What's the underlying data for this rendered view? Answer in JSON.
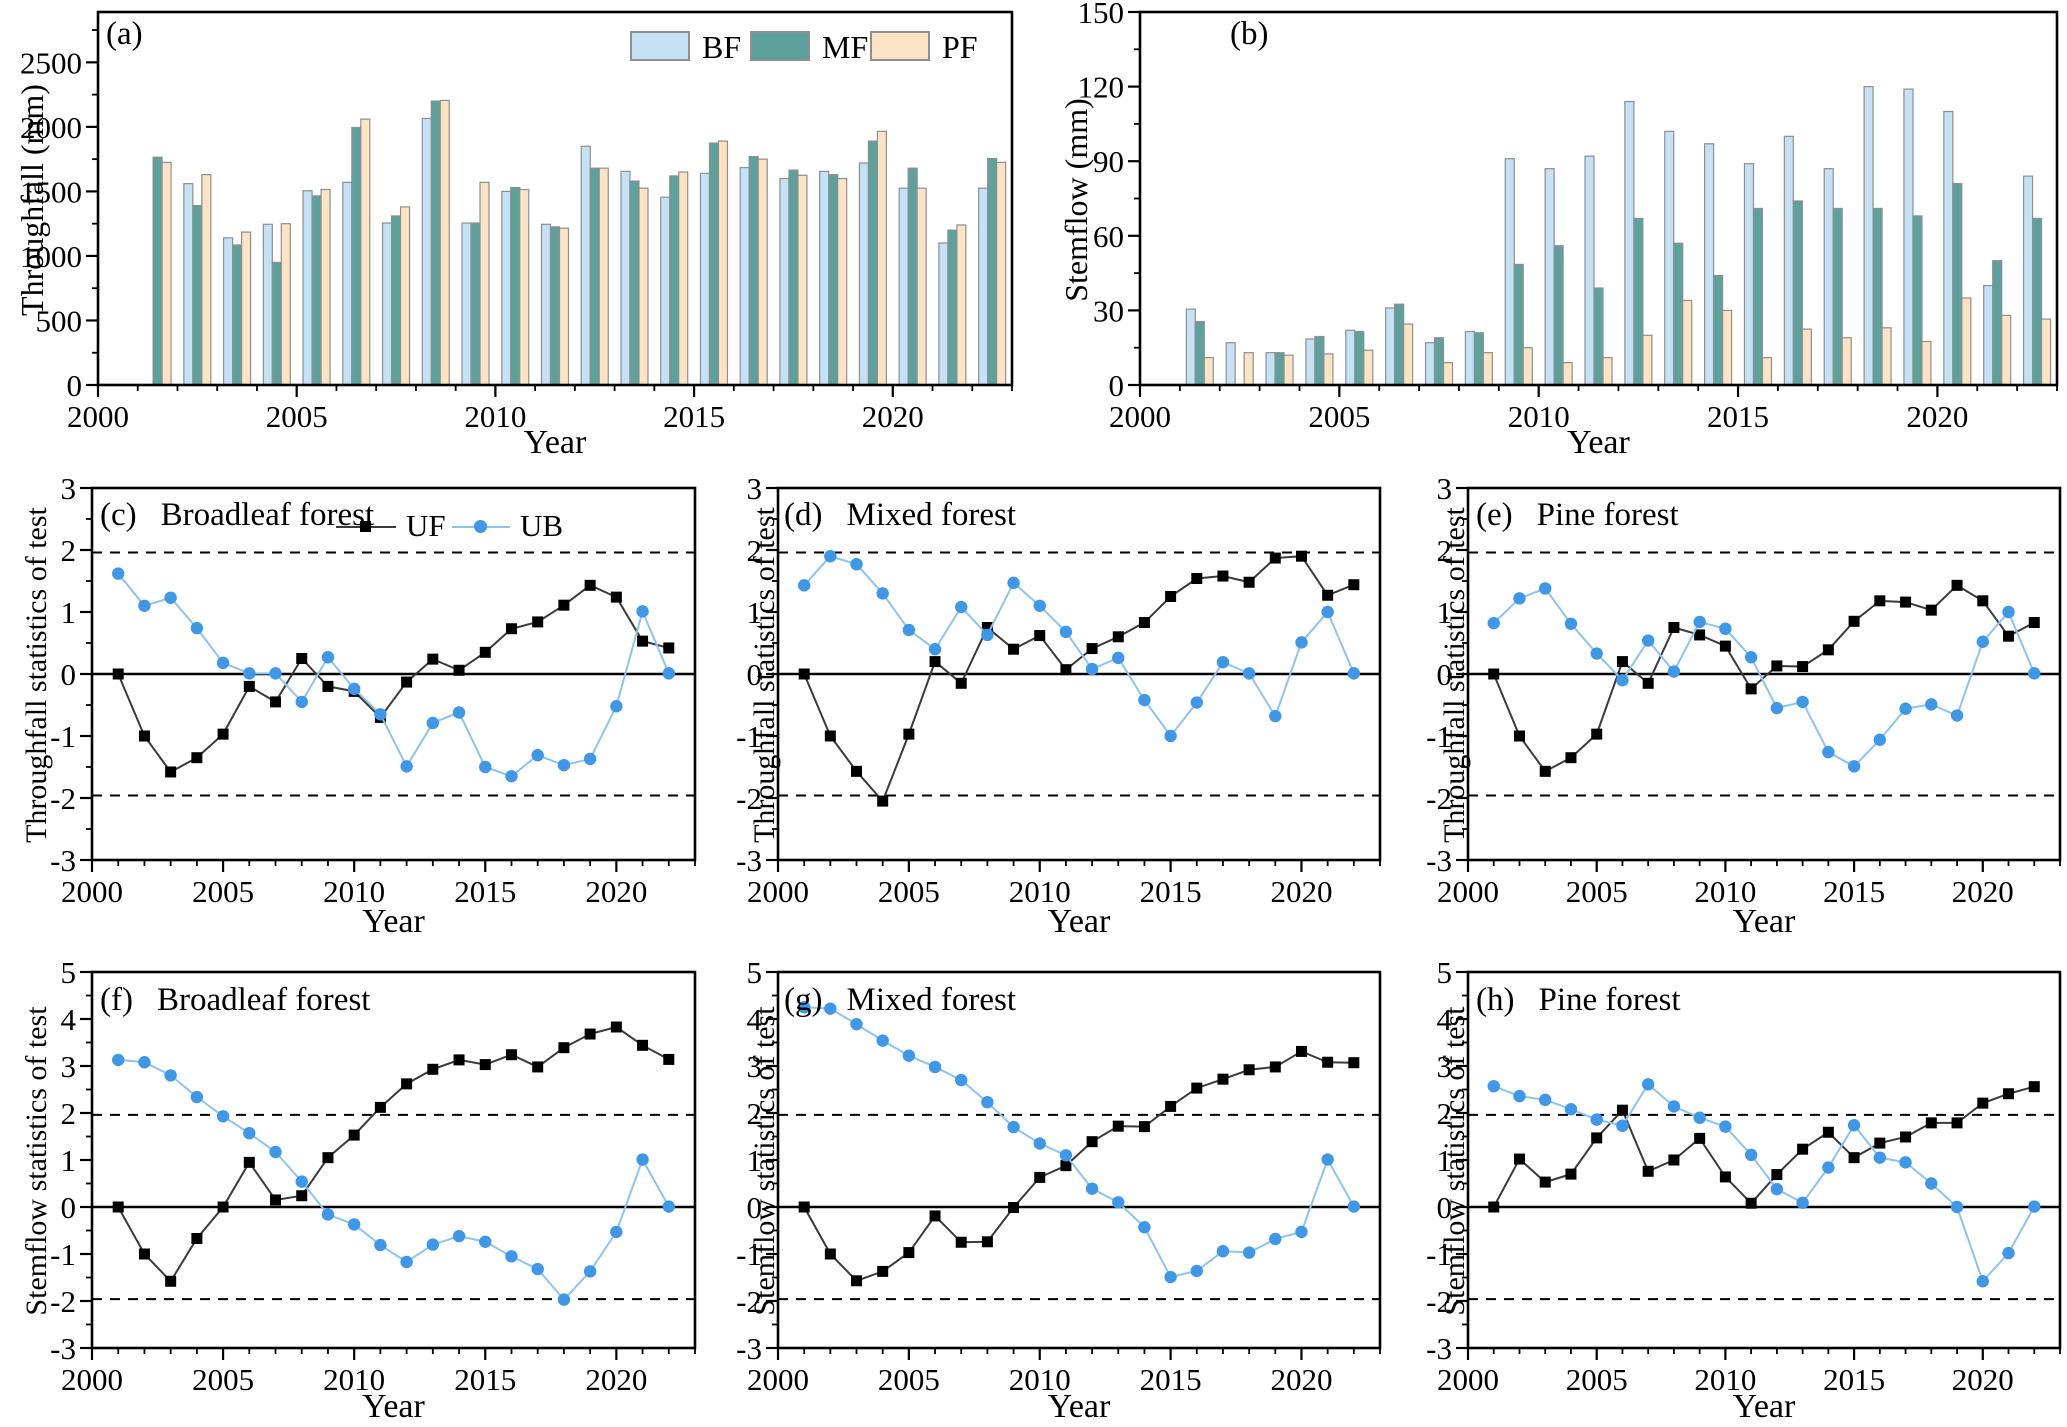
{
  "colors": {
    "bf": "#c5e1f5",
    "mf": "#5da19d",
    "pf": "#fbe3c3",
    "bar_border": "#8f8f8f",
    "uf_line": "#3a3a3a",
    "uf_marker": "#000000",
    "ub_line": "#8cc3f0",
    "ub_marker": "#3f97e8",
    "axis": "#000000"
  },
  "chart_data": [
    {
      "id": "a",
      "type": "bar",
      "label": "(a)",
      "title": "",
      "xlabel": "Year",
      "ylabel": "Throughfall (mm)",
      "legend": [
        "BF",
        "MF",
        "PF"
      ],
      "legend_position": "top-right",
      "xlim": [
        2000,
        2023
      ],
      "xticks": [
        2000,
        2005,
        2010,
        2015,
        2020
      ],
      "ylim": [
        0,
        2890
      ],
      "yticks": [
        0,
        500,
        1000,
        1500,
        2000,
        2500
      ],
      "yminor": 250,
      "x": [
        2001,
        2002,
        2003,
        2004,
        2005,
        2006,
        2007,
        2008,
        2009,
        2010,
        2011,
        2012,
        2013,
        2014,
        2015,
        2016,
        2017,
        2018,
        2019,
        2020,
        2021,
        2022
      ],
      "series": [
        {
          "name": "BF",
          "values": [
            null,
            1560,
            1140,
            1245,
            1505,
            1570,
            1255,
            2065,
            1255,
            1500,
            1245,
            1850,
            1655,
            1455,
            1640,
            1685,
            1600,
            1655,
            1720,
            1525,
            1100,
            1525
          ]
        },
        {
          "name": "MF",
          "values": [
            1765,
            1390,
            1085,
            950,
            1465,
            1995,
            1310,
            2200,
            1255,
            1530,
            1225,
            1680,
            1580,
            1620,
            1875,
            1770,
            1665,
            1630,
            1890,
            1680,
            1200,
            1755
          ]
        },
        {
          "name": "PF",
          "values": [
            1725,
            1630,
            1185,
            1250,
            1515,
            2060,
            1380,
            2205,
            1570,
            1515,
            1215,
            1680,
            1525,
            1650,
            1890,
            1750,
            1625,
            1600,
            1965,
            1525,
            1240,
            1725
          ]
        }
      ]
    },
    {
      "id": "b",
      "type": "bar",
      "label": "(b)",
      "title": "",
      "xlabel": "Year",
      "ylabel": "Stemflow (mm)",
      "legend": [],
      "legend_position": "none",
      "xlim": [
        2000,
        2023
      ],
      "xticks": [
        2000,
        2005,
        2010,
        2015,
        2020
      ],
      "ylim": [
        0,
        150
      ],
      "yticks": [
        0,
        30,
        60,
        90,
        120,
        150
      ],
      "yminor": 15,
      "x": [
        2001,
        2002,
        2003,
        2004,
        2005,
        2006,
        2007,
        2008,
        2009,
        2010,
        2011,
        2012,
        2013,
        2014,
        2015,
        2016,
        2017,
        2018,
        2019,
        2020,
        2021,
        2022
      ],
      "series": [
        {
          "name": "BF",
          "values": [
            30.5,
            17,
            13,
            18.5,
            22,
            31,
            17,
            21.5,
            91,
            87,
            92,
            114,
            102,
            97,
            89,
            100,
            87,
            120,
            119,
            110,
            40,
            84
          ]
        },
        {
          "name": "MF",
          "values": [
            25.5,
            null,
            13,
            19.5,
            21.5,
            32.5,
            19,
            21,
            48.5,
            56,
            39,
            67,
            57,
            44,
            71,
            74,
            71,
            71,
            68,
            81,
            50,
            67
          ]
        },
        {
          "name": "PF",
          "values": [
            11,
            13,
            12,
            12.5,
            14,
            24.5,
            9,
            13,
            15,
            9,
            11,
            20,
            34,
            30,
            11,
            22.5,
            19,
            23,
            17.5,
            35,
            28,
            26.5
          ]
        }
      ]
    },
    {
      "id": "c",
      "type": "line",
      "label": "(c)",
      "title": "Broadleaf forest",
      "xlabel": "Year",
      "ylabel": "Throughfall statistics of test",
      "legend": [
        "UF",
        "UB"
      ],
      "legend_position": "top-right",
      "xlim": [
        2000,
        2023
      ],
      "xticks": [
        2000,
        2005,
        2010,
        2015,
        2020
      ],
      "ylim": [
        -3,
        3
      ],
      "yticks": [
        -3,
        -2,
        -1,
        0,
        1,
        2,
        3
      ],
      "yminor": 0.5,
      "sig_level": 1.96,
      "zero_line": true,
      "x": [
        2001,
        2002,
        2003,
        2004,
        2005,
        2006,
        2007,
        2008,
        2009,
        2010,
        2011,
        2012,
        2013,
        2014,
        2015,
        2016,
        2017,
        2018,
        2019,
        2020,
        2021,
        2022
      ],
      "series": [
        {
          "name": "UF",
          "values": [
            0,
            -1.0,
            -1.58,
            -1.35,
            -0.97,
            -0.2,
            -0.45,
            0.25,
            -0.2,
            -0.28,
            -0.7,
            -0.13,
            0.24,
            0.06,
            0.35,
            0.73,
            0.84,
            1.11,
            1.43,
            1.24,
            0.53,
            0.42
          ]
        },
        {
          "name": "UB",
          "values": [
            1.62,
            1.1,
            1.23,
            0.74,
            0.18,
            0.01,
            0.01,
            -0.45,
            0.27,
            -0.24,
            -0.65,
            -1.49,
            -0.79,
            -0.62,
            -1.5,
            -1.65,
            -1.31,
            -1.47,
            -1.37,
            -0.52,
            1.01,
            0.01
          ]
        }
      ]
    },
    {
      "id": "d",
      "type": "line",
      "label": "(d)",
      "title": "Mixed forest",
      "xlabel": "Year",
      "ylabel": "Throughfall statistics of test",
      "legend": [],
      "legend_position": "none",
      "xlim": [
        2000,
        2023
      ],
      "xticks": [
        2000,
        2005,
        2010,
        2015,
        2020
      ],
      "ylim": [
        -3,
        3
      ],
      "yticks": [
        -3,
        -2,
        -1,
        0,
        1,
        2,
        3
      ],
      "yminor": 0.5,
      "sig_level": 1.96,
      "zero_line": true,
      "x": [
        2001,
        2002,
        2003,
        2004,
        2005,
        2006,
        2007,
        2008,
        2009,
        2010,
        2011,
        2012,
        2013,
        2014,
        2015,
        2016,
        2017,
        2018,
        2019,
        2020,
        2021,
        2022
      ],
      "series": [
        {
          "name": "UF",
          "values": [
            0,
            -1.0,
            -1.57,
            -2.05,
            -0.97,
            0.2,
            -0.15,
            0.75,
            0.4,
            0.62,
            0.07,
            0.41,
            0.6,
            0.83,
            1.25,
            1.54,
            1.58,
            1.48,
            1.87,
            1.9,
            1.27,
            1.44
          ]
        },
        {
          "name": "UB",
          "values": [
            1.43,
            1.9,
            1.77,
            1.3,
            0.71,
            0.4,
            1.08,
            0.63,
            1.47,
            1.1,
            0.68,
            0.08,
            0.26,
            -0.42,
            -1.0,
            -0.46,
            0.19,
            0.01,
            -0.68,
            0.51,
            1.0,
            0.01
          ]
        }
      ]
    },
    {
      "id": "e",
      "type": "line",
      "label": "(e)",
      "title": "Pine forest",
      "xlabel": "Year",
      "ylabel": "Throughfall statistics of test",
      "legend": [],
      "legend_position": "none",
      "xlim": [
        2000,
        2023
      ],
      "xticks": [
        2000,
        2005,
        2010,
        2015,
        2020
      ],
      "ylim": [
        -3,
        3
      ],
      "yticks": [
        -3,
        -2,
        -1,
        0,
        1,
        2,
        3
      ],
      "yminor": 0.5,
      "sig_level": 1.96,
      "zero_line": true,
      "x": [
        2001,
        2002,
        2003,
        2004,
        2005,
        2006,
        2007,
        2008,
        2009,
        2010,
        2011,
        2012,
        2013,
        2014,
        2015,
        2016,
        2017,
        2018,
        2019,
        2020,
        2021,
        2022
      ],
      "series": [
        {
          "name": "UF",
          "values": [
            0,
            -1.0,
            -1.57,
            -1.35,
            -0.97,
            0.2,
            -0.15,
            0.75,
            0.63,
            0.45,
            -0.24,
            0.13,
            0.12,
            0.39,
            0.85,
            1.18,
            1.16,
            1.03,
            1.43,
            1.18,
            0.61,
            0.83
          ]
        },
        {
          "name": "UB",
          "values": [
            0.82,
            1.22,
            1.38,
            0.81,
            0.33,
            -0.1,
            0.54,
            0.04,
            0.84,
            0.73,
            0.27,
            -0.55,
            -0.45,
            -1.26,
            -1.49,
            -1.06,
            -0.56,
            -0.49,
            -0.67,
            0.52,
            1.0,
            0.01
          ]
        }
      ]
    },
    {
      "id": "f",
      "type": "line",
      "label": "(f)",
      "title": "Broadleaf forest",
      "xlabel": "Year",
      "ylabel": "Stemflow statistics of test",
      "legend": [],
      "legend_position": "none",
      "xlim": [
        2000,
        2023
      ],
      "xticks": [
        2000,
        2005,
        2010,
        2015,
        2020
      ],
      "ylim": [
        -3,
        5
      ],
      "yticks": [
        -3,
        -2,
        -1,
        0,
        1,
        2,
        3,
        4,
        5
      ],
      "yminor": 0.5,
      "sig_level": 1.96,
      "zero_line": true,
      "x": [
        2001,
        2002,
        2003,
        2004,
        2005,
        2006,
        2007,
        2008,
        2009,
        2010,
        2011,
        2012,
        2013,
        2014,
        2015,
        2016,
        2017,
        2018,
        2019,
        2020,
        2021,
        2022
      ],
      "series": [
        {
          "name": "UF",
          "values": [
            0,
            -1.0,
            -1.58,
            -0.67,
            0.0,
            0.95,
            0.15,
            0.24,
            1.05,
            1.53,
            2.12,
            2.62,
            2.93,
            3.13,
            3.03,
            3.24,
            2.98,
            3.39,
            3.68,
            3.83,
            3.44,
            3.14
          ]
        },
        {
          "name": "UB",
          "values": [
            3.13,
            3.08,
            2.8,
            2.34,
            1.93,
            1.57,
            1.17,
            0.54,
            -0.16,
            -0.37,
            -0.81,
            -1.17,
            -0.8,
            -0.62,
            -0.74,
            -1.05,
            -1.32,
            -1.97,
            -1.37,
            -0.53,
            1.01,
            0.01
          ]
        }
      ]
    },
    {
      "id": "g",
      "type": "line",
      "label": "(g)",
      "title": "Mixed forest",
      "xlabel": "Year",
      "ylabel": "Stemflow statistics of test",
      "legend": [],
      "legend_position": "none",
      "xlim": [
        2000,
        2023
      ],
      "xticks": [
        2000,
        2005,
        2010,
        2015,
        2020
      ],
      "ylim": [
        -3,
        5
      ],
      "yticks": [
        -3,
        -2,
        -1,
        0,
        1,
        2,
        3,
        4,
        5
      ],
      "yminor": 0.5,
      "sig_level": 1.96,
      "zero_line": true,
      "x": [
        2001,
        2002,
        2003,
        2004,
        2005,
        2006,
        2007,
        2008,
        2009,
        2010,
        2011,
        2012,
        2013,
        2014,
        2015,
        2016,
        2017,
        2018,
        2019,
        2020,
        2021,
        2022
      ],
      "series": [
        {
          "name": "UF",
          "values": [
            0,
            -1.0,
            -1.57,
            -1.37,
            -0.97,
            -0.19,
            -0.75,
            -0.74,
            -0.01,
            0.63,
            0.88,
            1.39,
            1.72,
            1.71,
            2.14,
            2.53,
            2.72,
            2.92,
            2.98,
            3.31,
            3.08,
            3.07
          ]
        },
        {
          "name": "UB",
          "values": [
            4.25,
            4.22,
            3.89,
            3.54,
            3.22,
            2.98,
            2.7,
            2.23,
            1.7,
            1.35,
            1.1,
            0.39,
            0.1,
            -0.43,
            -1.49,
            -1.36,
            -0.94,
            -0.97,
            -0.68,
            -0.53,
            1.01,
            0.01
          ]
        }
      ]
    },
    {
      "id": "h",
      "type": "line",
      "label": "(h)",
      "title": "Pine forest",
      "xlabel": "Year",
      "ylabel": "Stemflow statistics of test",
      "legend": [],
      "legend_position": "none",
      "xlim": [
        2000,
        2023
      ],
      "xticks": [
        2000,
        2005,
        2010,
        2015,
        2020
      ],
      "ylim": [
        -3,
        5
      ],
      "yticks": [
        -3,
        -2,
        -1,
        0,
        1,
        2,
        3,
        4,
        5
      ],
      "yminor": 0.5,
      "sig_level": 1.96,
      "zero_line": true,
      "x": [
        2001,
        2002,
        2003,
        2004,
        2005,
        2006,
        2007,
        2008,
        2009,
        2010,
        2011,
        2012,
        2013,
        2014,
        2015,
        2016,
        2017,
        2018,
        2019,
        2020,
        2021,
        2022
      ],
      "series": [
        {
          "name": "UF",
          "values": [
            0,
            1.02,
            0.53,
            0.7,
            1.47,
            2.06,
            0.76,
            1.0,
            1.46,
            0.64,
            0.08,
            0.69,
            1.23,
            1.59,
            1.05,
            1.36,
            1.49,
            1.79,
            1.79,
            2.21,
            2.41,
            2.56
          ]
        },
        {
          "name": "UB",
          "values": [
            2.57,
            2.36,
            2.28,
            2.08,
            1.86,
            1.73,
            2.61,
            2.14,
            1.9,
            1.71,
            1.11,
            0.38,
            0.09,
            0.84,
            1.74,
            1.05,
            0.95,
            0.5,
            0.0,
            -1.58,
            -0.98,
            0.01
          ]
        }
      ]
    }
  ]
}
